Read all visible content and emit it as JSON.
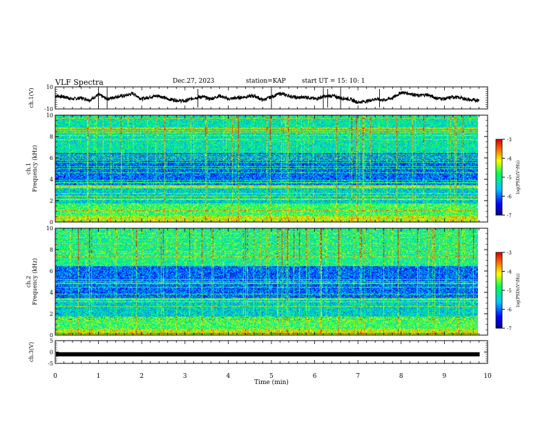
{
  "title": "VLF Spectra",
  "date": "Dec.27, 2023",
  "station": "station=KAP",
  "start_ut": "start UT =  15: 10: 1",
  "xlabel": "Time  (min)",
  "chart_data": [
    {
      "type": "line",
      "ylabel": "ch.1(V)",
      "ylim": [
        -10,
        10
      ],
      "yticks": [
        "10",
        "-10"
      ],
      "xlim": [
        0,
        10
      ],
      "x": [
        0.0,
        0.2,
        0.4,
        0.6,
        0.8,
        1.0,
        1.2,
        1.4,
        1.6,
        1.8,
        2.0,
        2.2,
        2.4,
        2.6,
        2.8,
        3.0,
        3.2,
        3.4,
        3.6,
        3.8,
        4.0,
        4.2,
        4.4,
        4.6,
        4.8,
        5.0,
        5.2,
        5.4,
        5.6,
        5.8,
        6.0,
        6.2,
        6.4,
        6.6,
        6.8,
        7.0,
        7.2,
        7.4,
        7.6,
        7.8,
        8.0,
        8.2,
        8.4,
        8.6,
        8.8,
        9.0,
        9.2,
        9.4,
        9.6,
        9.8
      ],
      "values": [
        2,
        1,
        -1,
        0,
        -2,
        3,
        -1,
        1,
        2,
        4,
        -1,
        1,
        2,
        -1,
        -2,
        -3,
        0,
        1,
        -1,
        2,
        -1,
        0,
        1,
        2,
        -2,
        1,
        4,
        2,
        0,
        1,
        -1,
        1,
        2,
        0,
        -1,
        -4,
        -3,
        -1,
        -2,
        0,
        5,
        4,
        2,
        3,
        0,
        -1,
        1,
        0,
        -2,
        -2
      ]
    },
    {
      "type": "heatmap",
      "ylabel": "ch.1\nFrequency (kHz)",
      "ylim": [
        0,
        10
      ],
      "yticks": [
        "0",
        "2",
        "4",
        "6",
        "8",
        "10"
      ],
      "xlim": [
        0,
        10
      ],
      "colorbar": {
        "label": "log(PSD)(V²/Hz)",
        "ticks": [
          "-3",
          "-4",
          "-5",
          "-6",
          "-7"
        ],
        "range": [
          -7,
          -3
        ]
      }
    },
    {
      "type": "heatmap",
      "ylabel": "ch.2\nFrequency (kHz)",
      "ylim": [
        0,
        10
      ],
      "yticks": [
        "0",
        "2",
        "4",
        "6",
        "8",
        "10"
      ],
      "xlim": [
        0,
        10
      ],
      "colorbar": {
        "label": "log(PSD)(V²/Hz)",
        "ticks": [
          "-3",
          "-4",
          "-5",
          "-6",
          "-7"
        ],
        "range": [
          -7,
          -3
        ]
      }
    },
    {
      "type": "line",
      "ylabel": "ch.3(V)",
      "ylim": [
        -5,
        5
      ],
      "yticks": [
        "5",
        "0",
        "-5"
      ],
      "xlim": [
        0,
        10
      ],
      "values": [
        -1,
        -1
      ]
    }
  ],
  "xticks": [
    "0",
    "1",
    "2",
    "3",
    "4",
    "5",
    "6",
    "7",
    "8",
    "9",
    "10"
  ],
  "colors": {
    "ink": "#000000",
    "spectrum_bg": "#00c8ff"
  }
}
